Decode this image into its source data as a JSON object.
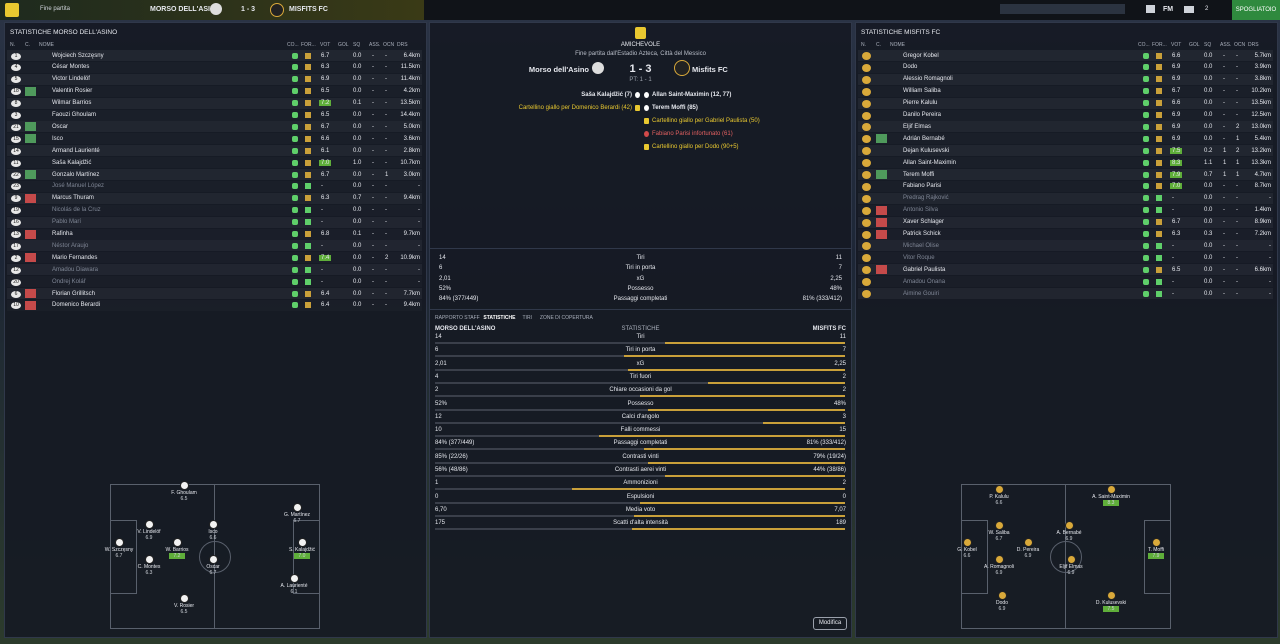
{
  "topbar": {
    "status": "Fine partita",
    "home": "MORSO DELL'ASINO",
    "score": "1 - 3",
    "away": "MISFITS FC",
    "brand": "FM",
    "notifications": "2",
    "button": "SPOGLIATOIO"
  },
  "left_panel": {
    "title": "STATISTICHE MORSO DELL'ASINO",
    "columns": [
      "N.",
      "C.",
      "NOME",
      "CO...",
      "FOR...",
      "VOT",
      "GOL",
      "SQ",
      "ASS.",
      "OCN",
      "DRS"
    ],
    "rows": [
      {
        "n": "1",
        "name": "Wojciech Szczęsny",
        "vot": "6.7",
        "sq": "0.0",
        "ass": "-",
        "ocn": "-",
        "drs": "6.4km"
      },
      {
        "n": "4",
        "name": "César Montes",
        "vot": "6.3",
        "sq": "0.0",
        "ass": "-",
        "ocn": "-",
        "drs": "11.5km"
      },
      {
        "n": "5",
        "name": "Victor Lindelöf",
        "vot": "6.9",
        "sq": "0.0",
        "ass": "-",
        "ocn": "-",
        "drs": "11.4km"
      },
      {
        "n": "18",
        "sub": "in",
        "name": "Valentin Rosier",
        "vot": "6.5",
        "sq": "0.0",
        "ass": "-",
        "ocn": "-",
        "drs": "4.2km"
      },
      {
        "n": "8",
        "name": "Wilmar Barrios",
        "vot": "7.2",
        "sq": "0.1",
        "ass": "-",
        "ocn": "-",
        "drs": "13.5km"
      },
      {
        "n": "3",
        "name": "Faouzi Ghoulam",
        "vot": "6.5",
        "sq": "0.0",
        "ass": "-",
        "ocn": "-",
        "drs": "14.4km"
      },
      {
        "n": "21",
        "sub": "in",
        "name": "Oscar",
        "vot": "6.7",
        "sq": "0.0",
        "ass": "-",
        "ocn": "-",
        "drs": "5.0km"
      },
      {
        "n": "15",
        "sub": "in",
        "name": "Isco",
        "vot": "6.6",
        "sq": "0.0",
        "ass": "-",
        "ocn": "-",
        "drs": "3.6km"
      },
      {
        "n": "14",
        "name": "Armand Laurienté",
        "vot": "6.1",
        "sq": "0.0",
        "ass": "-",
        "ocn": "-",
        "drs": "2.8km"
      },
      {
        "n": "11",
        "name": "Saša Kalajdžić",
        "vot": "7.0",
        "sq": "1.0",
        "ass": "-",
        "ocn": "-",
        "drs": "10.7km"
      },
      {
        "n": "22",
        "sub": "in",
        "name": "Gonzalo Martínez",
        "vot": "6.7",
        "sq": "0.0",
        "ass": "-",
        "ocn": "1",
        "drs": "3.0km"
      },
      {
        "n": "23",
        "name": "José Manuel López",
        "vot": "-",
        "sq": "0.0",
        "ass": "-",
        "ocn": "-",
        "drs": "-"
      },
      {
        "n": "9",
        "sub": "out",
        "name": "Marcus Thuram",
        "vot": "6.3",
        "sq": "0.7",
        "ass": "-",
        "ocn": "-",
        "drs": "9.4km"
      },
      {
        "n": "19",
        "name": "Nicolás de la Cruz",
        "vot": "-",
        "sq": "0.0",
        "ass": "-",
        "ocn": "-",
        "drs": "-"
      },
      {
        "n": "16",
        "name": "Pablo Marí",
        "vot": "-",
        "sq": "0.0",
        "ass": "-",
        "ocn": "-",
        "drs": "-"
      },
      {
        "n": "13",
        "sub": "out",
        "name": "Rafinha",
        "vot": "6.8",
        "sq": "0.1",
        "ass": "-",
        "ocn": "-",
        "drs": "9.7km"
      },
      {
        "n": "17",
        "name": "Néstor Araujo",
        "vot": "-",
        "sq": "0.0",
        "ass": "-",
        "ocn": "-",
        "drs": "-"
      },
      {
        "n": "2",
        "sub": "out",
        "name": "Mario Fernandes",
        "vot": "7.4",
        "sq": "0.0",
        "ass": "-",
        "ocn": "2",
        "drs": "10.9km"
      },
      {
        "n": "12",
        "name": "Amadou Diawara",
        "vot": "-",
        "sq": "0.0",
        "ass": "-",
        "ocn": "-",
        "drs": "-"
      },
      {
        "n": "20",
        "name": "Ondrej Kolář",
        "vot": "-",
        "sq": "0.0",
        "ass": "-",
        "ocn": "-",
        "drs": "-"
      },
      {
        "n": "6",
        "sub": "out",
        "name": "Florian Grillitsch",
        "vot": "6.4",
        "sq": "0.0",
        "ass": "-",
        "ocn": "-",
        "drs": "7.7km"
      },
      {
        "n": "10",
        "sub": "out",
        "name": "Domenico Berardi",
        "vot": "6.4",
        "sq": "0.0",
        "ass": "-",
        "ocn": "-",
        "drs": "9.4km"
      }
    ],
    "formation": [
      {
        "name": "F. Ghoulam",
        "rating": "6.5"
      },
      {
        "name": "V. Lindelöf",
        "rating": "6.9"
      },
      {
        "name": "Isco",
        "rating": "6.6"
      },
      {
        "name": "G. Martínez",
        "rating": "6.7"
      },
      {
        "name": "W. Szczęsny",
        "rating": "6.7"
      },
      {
        "name": "W. Barrios",
        "rating": "7.2"
      },
      {
        "name": "S. Kalajdžić",
        "rating": "7.0"
      },
      {
        "name": "C. Montes",
        "rating": "6.3"
      },
      {
        "name": "Oscar",
        "rating": "6.7"
      },
      {
        "name": "A. Laurienté",
        "rating": "6.1"
      },
      {
        "name": "V. Rosier",
        "rating": "6.5"
      }
    ]
  },
  "right_panel": {
    "title": "STATISTICHE MISFITS FC",
    "columns": [
      "N.",
      "C.",
      "NOME",
      "CO...",
      "FOR...",
      "VOT",
      "GOL",
      "SQ",
      "ASS.",
      "OCN",
      "DRS"
    ],
    "rows": [
      {
        "name": "Gregor Kobel",
        "vot": "6.6",
        "sq": "0.0",
        "ass": "-",
        "ocn": "-",
        "drs": "5.7km"
      },
      {
        "name": "Dodo",
        "vot": "6.9",
        "sq": "0.0",
        "ass": "-",
        "ocn": "-",
        "drs": "3.9km"
      },
      {
        "name": "Alessio Romagnoli",
        "vot": "6.9",
        "sq": "0.0",
        "ass": "-",
        "ocn": "-",
        "drs": "3.8km"
      },
      {
        "name": "William Saliba",
        "vot": "6.7",
        "sq": "0.0",
        "ass": "-",
        "ocn": "-",
        "drs": "10.2km"
      },
      {
        "name": "Pierre Kalulu",
        "vot": "6.6",
        "sq": "0.0",
        "ass": "-",
        "ocn": "-",
        "drs": "13.5km"
      },
      {
        "name": "Danilo Pereira",
        "vot": "6.9",
        "sq": "0.0",
        "ass": "-",
        "ocn": "-",
        "drs": "12.5km"
      },
      {
        "name": "Eljif Elmas",
        "vot": "6.9",
        "sq": "0.0",
        "ass": "-",
        "ocn": "2",
        "drs": "13.0km"
      },
      {
        "sub": "in",
        "name": "Adrián Bernabé",
        "vot": "6.9",
        "sq": "0.0",
        "ass": "-",
        "ocn": "1",
        "drs": "5.4km"
      },
      {
        "name": "Dejan Kulusevski",
        "vot": "7.5",
        "sq": "0.2",
        "ass": "1",
        "ocn": "2",
        "drs": "13.2km"
      },
      {
        "name": "Allan Saint-Maximin",
        "vot": "8.3",
        "sq": "1.1",
        "ass": "1",
        "ocn": "1",
        "drs": "13.3km"
      },
      {
        "sub": "in",
        "name": "Terem Moffi",
        "vot": "7.9",
        "sq": "0.7",
        "ass": "1",
        "ocn": "1",
        "drs": "4.7km"
      },
      {
        "name": "Fabiano Parisi",
        "vot": "7.0",
        "sq": "0.0",
        "ass": "-",
        "ocn": "-",
        "drs": "8.7km"
      },
      {
        "name": "Predrag Rajković",
        "vot": "-",
        "sq": "0.0",
        "ass": "-",
        "ocn": "-",
        "drs": "-"
      },
      {
        "sub": "out",
        "name": "Antonio Silva",
        "vot": "-",
        "sq": "0.0",
        "ass": "-",
        "ocn": "-",
        "drs": "1.4km"
      },
      {
        "sub": "out",
        "name": "Xaver Schlager",
        "vot": "6.7",
        "sq": "0.0",
        "ass": "-",
        "ocn": "-",
        "drs": "8.9km"
      },
      {
        "sub": "out",
        "name": "Patrick Schick",
        "vot": "6.3",
        "sq": "0.3",
        "ass": "-",
        "ocn": "-",
        "drs": "7.2km"
      },
      {
        "name": "Michael Olise",
        "vot": "-",
        "sq": "0.0",
        "ass": "-",
        "ocn": "-",
        "drs": "-"
      },
      {
        "name": "Vitor Roque",
        "vot": "-",
        "sq": "0.0",
        "ass": "-",
        "ocn": "-",
        "drs": "-"
      },
      {
        "sub": "out",
        "name": "Gabriel Paulista",
        "vot": "6.5",
        "sq": "0.0",
        "ass": "-",
        "ocn": "-",
        "drs": "6.6km"
      },
      {
        "name": "Amadou Onana",
        "vot": "-",
        "sq": "0.0",
        "ass": "-",
        "ocn": "-",
        "drs": "-"
      },
      {
        "name": "Aimine Gouiri",
        "vot": "-",
        "sq": "0.0",
        "ass": "-",
        "ocn": "-",
        "drs": "-"
      }
    ],
    "formation": [
      {
        "name": "P. Kalulu",
        "rating": "6.6"
      },
      {
        "name": "A. Saint-Maximin",
        "rating": "8.3"
      },
      {
        "name": "W. Saliba",
        "rating": "6.7"
      },
      {
        "name": "A. Bernabé",
        "rating": "6.9"
      },
      {
        "name": "G. Kobel",
        "rating": "6.6"
      },
      {
        "name": "D. Pereira",
        "rating": "6.9"
      },
      {
        "name": "T. Moffi",
        "rating": "7.9"
      },
      {
        "name": "A. Romagnoli",
        "rating": "6.9"
      },
      {
        "name": "Eljif Elmas",
        "rating": "6.9"
      },
      {
        "name": "Dodo",
        "rating": "6.9"
      },
      {
        "name": "D. Kulusevski",
        "rating": "7.5"
      }
    ]
  },
  "match": {
    "competition": "AMICHEVOLE",
    "venue": "Fine partita dall'Estadio Azteca, Città del Messico",
    "home": "Morso dell'Asino",
    "score": "1 - 3",
    "away": "Misfits FC",
    "half_time": "PT: 1 - 1",
    "home_events": [
      "Saša Kalajdžić (7)",
      "Cartellino giallo per Domenico Berardi (42)"
    ],
    "away_events": [
      "Allan Saint-Maximin (12, 77)",
      "Terem Moffi (85)",
      "Cartellino giallo per Gabriel Paulista (50)",
      "Fabiano Parisi infortunato (61)",
      "Cartellino giallo per Dodo (90+5)"
    ]
  },
  "summary": [
    [
      "14",
      "Tiri",
      "11"
    ],
    [
      "6",
      "Tiri in porta",
      "7"
    ],
    [
      "2,01",
      "xG",
      "2,25"
    ],
    [
      "52%",
      "Possesso",
      "48%"
    ],
    [
      "84% (377/449)",
      "Passaggi completati",
      "81% (333/412)"
    ]
  ],
  "tabs": [
    "RAPPORTO STAFF",
    "STATISTICHE",
    "TIRI",
    "ZONE DI COPERTURA"
  ],
  "stats": {
    "header": [
      "MORSO DELL'ASINO",
      "STATISTICHE",
      "MISFITS FC"
    ],
    "rows": [
      [
        "14",
        "Tiri",
        "11"
      ],
      [
        "6",
        "Tiri in porta",
        "7"
      ],
      [
        "2,01",
        "xG",
        "2,25"
      ],
      [
        "4",
        "Tiri fuori",
        "2"
      ],
      [
        "2",
        "Chiare occasioni da gol",
        "2"
      ],
      [
        "52%",
        "Possesso",
        "48%"
      ],
      [
        "12",
        "Calci d'angolo",
        "3"
      ],
      [
        "10",
        "Falli commessi",
        "15"
      ],
      [
        "84% (377/449)",
        "Passaggi completati",
        "81% (333/412)"
      ],
      [
        "85% (22/26)",
        "Contrasti vinti",
        "79% (19/24)"
      ],
      [
        "56% (48/86)",
        "Contrasti aerei vinti",
        "44% (38/86)"
      ],
      [
        "1",
        "Ammonizioni",
        "2"
      ],
      [
        "0",
        "Espulsioni",
        "0"
      ],
      [
        "6,70",
        "Media voto",
        "7,07"
      ],
      [
        "175",
        "Scatti d'alta intensità",
        "189"
      ]
    ]
  },
  "button": "Modifica"
}
